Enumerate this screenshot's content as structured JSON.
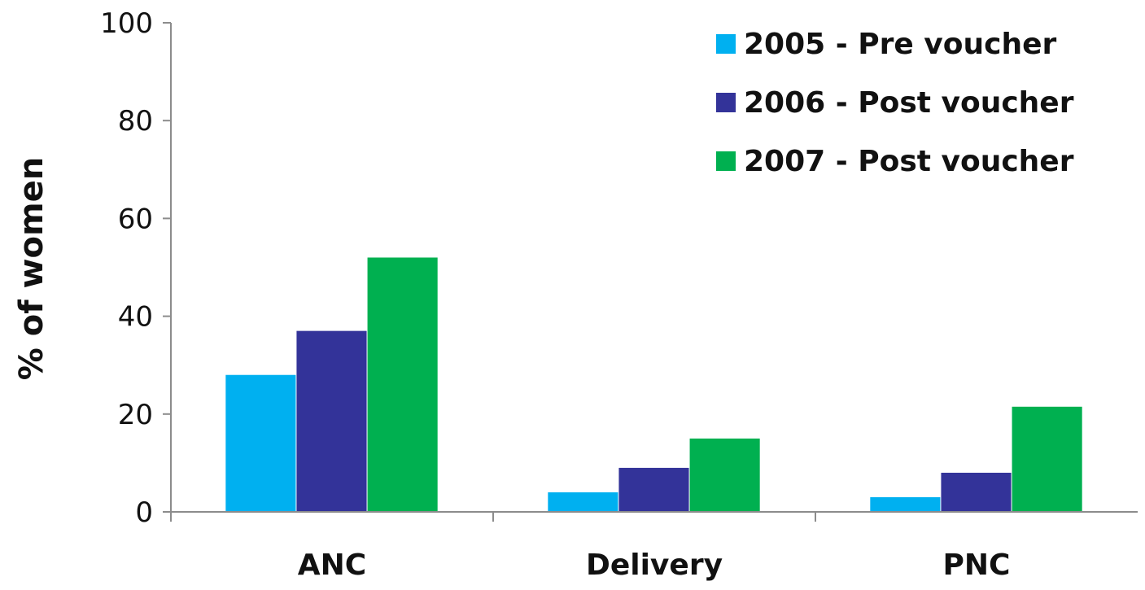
{
  "chart_data": {
    "type": "bar",
    "title": "",
    "xlabel": "",
    "ylabel": "% of women",
    "ylim": [
      0,
      100
    ],
    "yticks": [
      0,
      20,
      40,
      60,
      80,
      100
    ],
    "grid": false,
    "legend_position": "top-right",
    "categories": [
      "ANC",
      "Delivery",
      "PNC"
    ],
    "series": [
      {
        "name": "2005 - Pre voucher",
        "color": "#00b0f0",
        "values": [
          28,
          4,
          3
        ]
      },
      {
        "name": "2006 - Post voucher",
        "color": "#333399",
        "values": [
          37,
          9,
          8
        ]
      },
      {
        "name": "2007 - Post voucher",
        "color": "#00b050",
        "values": [
          52,
          15,
          21.5
        ]
      }
    ]
  }
}
